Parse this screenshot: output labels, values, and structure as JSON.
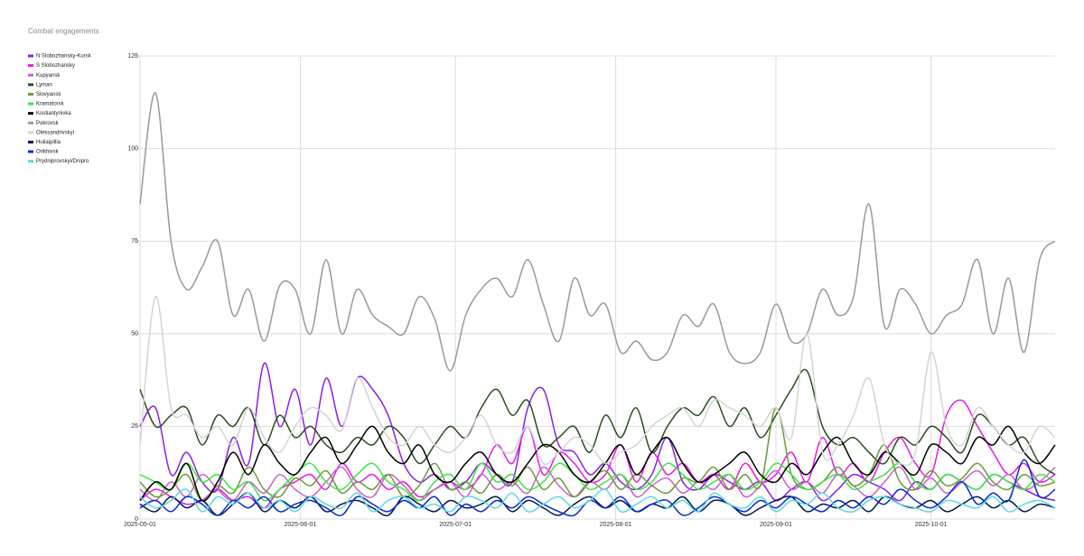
{
  "chart_data": {
    "type": "line",
    "title": "Combat engagements",
    "x": [
      "2025-05-01",
      "2025-05-04",
      "2025-05-07",
      "2025-05-10",
      "2025-05-13",
      "2025-05-16",
      "2025-05-19",
      "2025-05-22",
      "2025-05-25",
      "2025-05-28",
      "2025-05-31",
      "2025-06-03",
      "2025-06-06",
      "2025-06-09",
      "2025-06-12",
      "2025-06-15",
      "2025-06-18",
      "2025-06-21",
      "2025-06-24",
      "2025-06-27",
      "2025-06-30",
      "2025-07-03",
      "2025-07-06",
      "2025-07-09",
      "2025-07-12",
      "2025-07-15",
      "2025-07-18",
      "2025-07-21",
      "2025-07-24",
      "2025-07-27",
      "2025-07-30",
      "2025-08-02",
      "2025-08-05",
      "2025-08-08",
      "2025-08-11",
      "2025-08-14",
      "2025-08-17",
      "2025-08-20",
      "2025-08-23",
      "2025-08-26",
      "2025-08-29",
      "2025-09-01",
      "2025-09-04",
      "2025-09-07",
      "2025-09-10",
      "2025-09-13",
      "2025-09-16",
      "2025-09-19",
      "2025-09-22",
      "2025-09-25",
      "2025-09-28",
      "2025-10-01",
      "2025-10-04",
      "2025-10-07",
      "2025-10-10",
      "2025-10-13",
      "2025-10-16",
      "2025-10-19",
      "2025-10-22",
      "2025-10-25"
    ],
    "xlim": [
      "2025-05-01",
      "2025-10-25"
    ],
    "xticks": [
      "2025-05-01",
      "2025-06-01",
      "2025-07-01",
      "2025-08-01",
      "2025-09-01",
      "2025-10-01"
    ],
    "ylim": [
      0,
      125
    ],
    "yticks": [
      0,
      25,
      50,
      75,
      100,
      125
    ],
    "grid": true,
    "legend": "left",
    "series": [
      {
        "name": "N Slobozhansky-Kursk",
        "color": "#8c1ee6",
        "values": [
          25,
          30,
          12,
          18,
          10,
          8,
          22,
          15,
          42,
          25,
          35,
          20,
          38,
          25,
          38,
          35,
          28,
          15,
          10,
          12,
          8,
          10,
          15,
          12,
          10,
          30,
          35,
          20,
          18,
          12,
          15,
          10,
          8,
          12,
          22,
          10,
          8,
          12,
          10,
          8,
          10,
          5,
          8,
          10,
          5,
          8,
          12,
          10,
          8,
          5,
          10,
          8,
          12,
          10,
          8,
          12,
          10,
          8,
          6,
          5
        ]
      },
      {
        "name": "S Slobozhansky",
        "color": "#e619e6",
        "values": [
          5,
          8,
          6,
          4,
          5,
          8,
          5,
          6,
          3,
          8,
          10,
          12,
          8,
          15,
          10,
          12,
          8,
          10,
          6,
          8,
          10,
          8,
          12,
          20,
          15,
          25,
          12,
          18,
          15,
          10,
          12,
          20,
          10,
          18,
          12,
          15,
          10,
          12,
          8,
          15,
          10,
          12,
          18,
          10,
          22,
          12,
          15,
          10,
          18,
          22,
          15,
          12,
          28,
          32,
          25,
          18,
          12,
          15,
          10,
          12
        ]
      },
      {
        "name": "Kupyansk",
        "color": "#c864c8",
        "values": [
          8,
          5,
          10,
          6,
          12,
          8,
          5,
          10,
          7,
          12,
          8,
          6,
          10,
          14,
          8,
          6,
          12,
          9,
          5,
          8,
          10,
          6,
          12,
          8,
          10,
          7,
          14,
          9,
          6,
          10,
          8,
          12,
          6,
          9,
          11,
          7,
          10,
          8,
          12,
          6,
          9,
          13,
          8,
          10,
          7,
          12,
          9,
          6,
          10,
          14,
          8,
          11,
          7,
          10,
          13,
          9,
          12,
          8,
          10,
          14
        ]
      },
      {
        "name": "Lyman",
        "color": "#2a4d1e",
        "values": [
          35,
          25,
          28,
          30,
          20,
          28,
          25,
          30,
          20,
          28,
          22,
          25,
          20,
          18,
          22,
          20,
          25,
          22,
          15,
          20,
          25,
          22,
          30,
          35,
          28,
          32,
          20,
          22,
          25,
          18,
          28,
          22,
          30,
          18,
          25,
          30,
          28,
          33,
          25,
          30,
          22,
          28,
          35,
          40,
          25,
          20,
          22,
          18,
          15,
          22,
          20,
          25,
          22,
          18,
          28,
          25,
          20,
          22,
          15,
          12
        ]
      },
      {
        "name": "Slovyansk",
        "color": "#6b9a3a",
        "values": [
          10,
          6,
          8,
          12,
          5,
          9,
          7,
          14,
          8,
          6,
          11,
          9,
          13,
          7,
          10,
          8,
          12,
          6,
          9,
          15,
          8,
          10,
          7,
          12,
          9,
          14,
          8,
          11,
          6,
          10,
          13,
          8,
          12,
          9,
          7,
          11,
          10,
          14,
          8,
          12,
          9,
          30,
          12,
          8,
          10,
          14,
          9,
          12,
          20,
          10,
          8,
          13,
          9,
          11,
          15,
          10,
          8,
          12,
          9,
          10
        ]
      },
      {
        "name": "Kramatorsk",
        "color": "#3ce63c",
        "values": [
          12,
          10,
          8,
          15,
          10,
          12,
          8,
          10,
          5,
          8,
          12,
          15,
          10,
          8,
          12,
          15,
          10,
          8,
          5,
          10,
          12,
          8,
          15,
          10,
          12,
          8,
          10,
          15,
          12,
          8,
          10,
          12,
          8,
          10,
          15,
          12,
          8,
          10,
          12,
          8,
          10,
          15,
          12,
          8,
          10,
          12,
          8,
          10,
          12,
          15,
          10,
          8,
          12,
          10,
          8,
          12,
          10,
          8,
          12,
          10
        ]
      },
      {
        "name": "Kostiantynivka",
        "color": "#000000",
        "values": [
          5,
          10,
          8,
          15,
          5,
          10,
          18,
          12,
          20,
          15,
          12,
          18,
          22,
          15,
          20,
          25,
          18,
          15,
          20,
          12,
          10,
          15,
          18,
          12,
          10,
          15,
          20,
          18,
          12,
          10,
          15,
          20,
          12,
          18,
          22,
          15,
          10,
          12,
          15,
          18,
          12,
          10,
          15,
          12,
          18,
          22,
          15,
          12,
          18,
          15,
          12,
          20,
          18,
          15,
          22,
          20,
          25,
          18,
          15,
          20
        ]
      },
      {
        "name": "Pokrovsk",
        "color": "#999999",
        "values": [
          85,
          115,
          75,
          62,
          68,
          75,
          55,
          62,
          48,
          63,
          62,
          50,
          70,
          50,
          62,
          55,
          52,
          50,
          60,
          54,
          40,
          55,
          62,
          65,
          60,
          70,
          58,
          48,
          65,
          55,
          58,
          45,
          48,
          43,
          45,
          55,
          52,
          58,
          45,
          42,
          45,
          58,
          48,
          50,
          62,
          55,
          60,
          85,
          52,
          62,
          58,
          50,
          55,
          58,
          70,
          50,
          65,
          45,
          70,
          75
        ]
      },
      {
        "name": "Oleksandrivskyi",
        "color": "#d4d4d4",
        "values": [
          20,
          60,
          30,
          28,
          22,
          25,
          20,
          30,
          22,
          18,
          25,
          30,
          28,
          24,
          38,
          30,
          22,
          20,
          25,
          20,
          18,
          22,
          28,
          20,
          18,
          25,
          15,
          18,
          22,
          20,
          15,
          18,
          20,
          25,
          28,
          30,
          25,
          32,
          30,
          28,
          25,
          30,
          22,
          50,
          18,
          20,
          28,
          38,
          20,
          15,
          18,
          45,
          25,
          20,
          30,
          25,
          20,
          18,
          25,
          22
        ]
      },
      {
        "name": "Huliaipillia",
        "color": "#001a4d",
        "values": [
          4,
          2,
          6,
          3,
          5,
          1,
          4,
          7,
          2,
          5,
          3,
          6,
          2,
          4,
          5,
          3,
          1,
          6,
          4,
          2,
          5,
          3,
          4,
          6,
          2,
          5,
          3,
          1,
          4,
          6,
          3,
          5,
          2,
          4,
          3,
          6,
          2,
          5,
          4,
          1,
          3,
          5,
          6,
          2,
          4,
          3,
          5,
          2,
          6,
          4,
          3,
          5,
          2,
          4,
          6,
          3,
          5,
          2,
          4,
          3
        ]
      },
      {
        "name": "Orikhivsk",
        "color": "#0a2ad6",
        "values": [
          3,
          5,
          2,
          6,
          4,
          1,
          5,
          3,
          6,
          2,
          4,
          5,
          3,
          1,
          6,
          4,
          2,
          5,
          3,
          6,
          1,
          4,
          2,
          5,
          3,
          6,
          4,
          2,
          1,
          5,
          3,
          6,
          2,
          4,
          5,
          1,
          3,
          6,
          4,
          2,
          5,
          3,
          6,
          4,
          2,
          5,
          3,
          6,
          4,
          8,
          5,
          3,
          6,
          10,
          4,
          7,
          5,
          16,
          6,
          8
        ]
      },
      {
        "name": "Prydniprovskyi/Dnipro",
        "color": "#5fd8e0",
        "values": [
          6,
          3,
          5,
          8,
          2,
          6,
          4,
          7,
          3,
          5,
          2,
          6,
          4,
          3,
          7,
          2,
          5,
          6,
          3,
          4,
          2,
          6,
          5,
          3,
          7,
          2,
          4,
          6,
          3,
          5,
          8,
          2,
          4,
          6,
          3,
          5,
          2,
          7,
          4,
          3,
          6,
          2,
          5,
          4,
          7,
          3,
          2,
          5,
          6,
          4,
          3,
          2,
          5,
          4,
          3,
          6,
          2,
          4,
          5,
          3
        ]
      }
    ]
  }
}
